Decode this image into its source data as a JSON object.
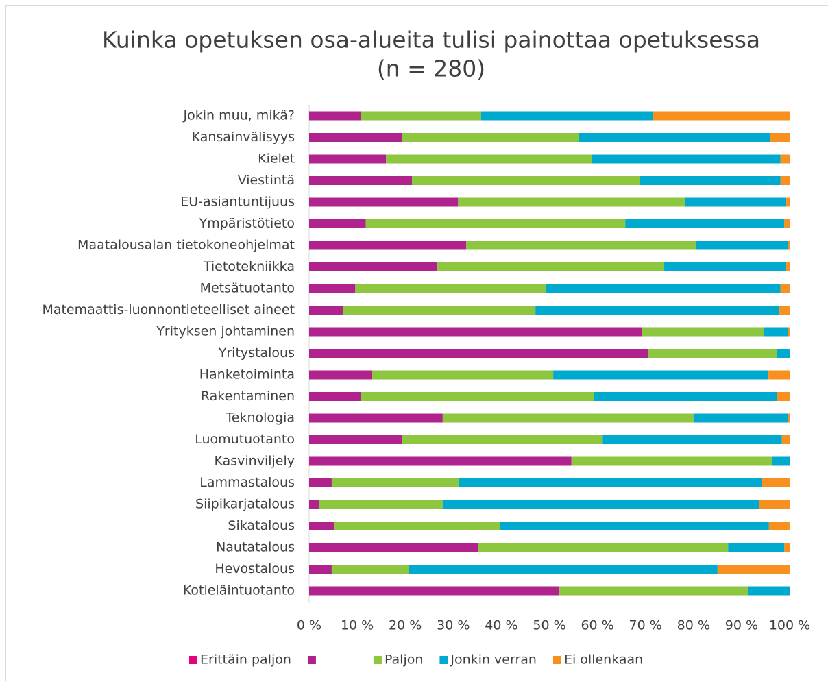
{
  "chart_data": {
    "type": "stacked-barh",
    "title": "Kuinka opetuksen osa-alueita tulisi painottaa opetuksessa",
    "subtitle": "(n = 280)",
    "categories": [
      "Jokin muu, mikä?",
      "Kansainvälisyys",
      "Kielet",
      "Viestintä",
      "EU-asiantuntijuus",
      "Ympäristötieto",
      "Maatalousalan tietokoneohjelmat",
      "Tietotekniikka",
      "Metsätuotanto",
      "Matemaattis-luonnontieteelliset aineet",
      "Yrityksen johtaminen",
      "Yritystalous",
      "Hanketoiminta",
      "Rakentaminen",
      "Teknologia",
      "Luomutuotanto",
      "Kasvinviljely",
      "Lammastalous",
      "Siipikarjatalous",
      "Sikatalous",
      "Nautatalous",
      "Hevostalous",
      "Kotieläintuotanto"
    ],
    "series": [
      {
        "name": "Erittäin paljon",
        "color": "#e5007d",
        "values": [
          0,
          0,
          0,
          0,
          0,
          0,
          0,
          0,
          0,
          0,
          0,
          0,
          0,
          0,
          0,
          0,
          0,
          0,
          0,
          0,
          0,
          0,
          0
        ]
      },
      {
        "name": null,
        "color": "#b0228c",
        "values": [
          10.7,
          19.3,
          16.0,
          21.4,
          31.0,
          11.8,
          32.7,
          26.7,
          9.6,
          7.0,
          69.2,
          70.6,
          13.1,
          10.7,
          27.8,
          19.3,
          54.6,
          4.7,
          2.1,
          5.3,
          35.2,
          4.7,
          52.1
        ]
      },
      {
        "name": "Paljon",
        "color": "#8dc63f",
        "values": [
          25.1,
          36.8,
          42.9,
          47.5,
          47.2,
          54.0,
          47.9,
          47.2,
          39.6,
          40.1,
          25.5,
          26.8,
          37.7,
          48.5,
          52.2,
          41.8,
          41.8,
          26.4,
          25.7,
          34.4,
          52.0,
          16.0,
          39.2
        ]
      },
      {
        "name": "Jonkin verran",
        "color": "#00a9ce",
        "values": [
          35.7,
          39.9,
          39.2,
          29.2,
          21.1,
          33.1,
          19.0,
          25.4,
          48.9,
          50.8,
          4.9,
          2.6,
          44.8,
          38.2,
          19.6,
          37.3,
          3.6,
          63.2,
          65.8,
          56.0,
          11.7,
          64.3,
          8.7
        ]
      },
      {
        "name": "Ei ollenkaan",
        "color": "#f7901e",
        "values": [
          28.5,
          4.0,
          1.9,
          1.9,
          0.7,
          1.1,
          0.4,
          0.7,
          1.9,
          2.1,
          0.4,
          0,
          4.4,
          2.6,
          0.4,
          1.6,
          0,
          5.7,
          6.4,
          4.3,
          1.1,
          15.0,
          0
        ]
      }
    ],
    "xlim": [
      0,
      100
    ],
    "xticks": [
      {
        "value": 0,
        "label": "0 %"
      },
      {
        "value": 10,
        "label": "10 %"
      },
      {
        "value": 20,
        "label": "20 %"
      },
      {
        "value": 30,
        "label": "30 %"
      },
      {
        "value": 40,
        "label": "40 %"
      },
      {
        "value": 50,
        "label": "50 %"
      },
      {
        "value": 60,
        "label": "60 %"
      },
      {
        "value": 70,
        "label": "70 %"
      },
      {
        "value": 80,
        "label": "80 %"
      },
      {
        "value": 90,
        "label": "90 %"
      },
      {
        "value": 100,
        "label": "100 %"
      }
    ],
    "legend": "bottom"
  }
}
